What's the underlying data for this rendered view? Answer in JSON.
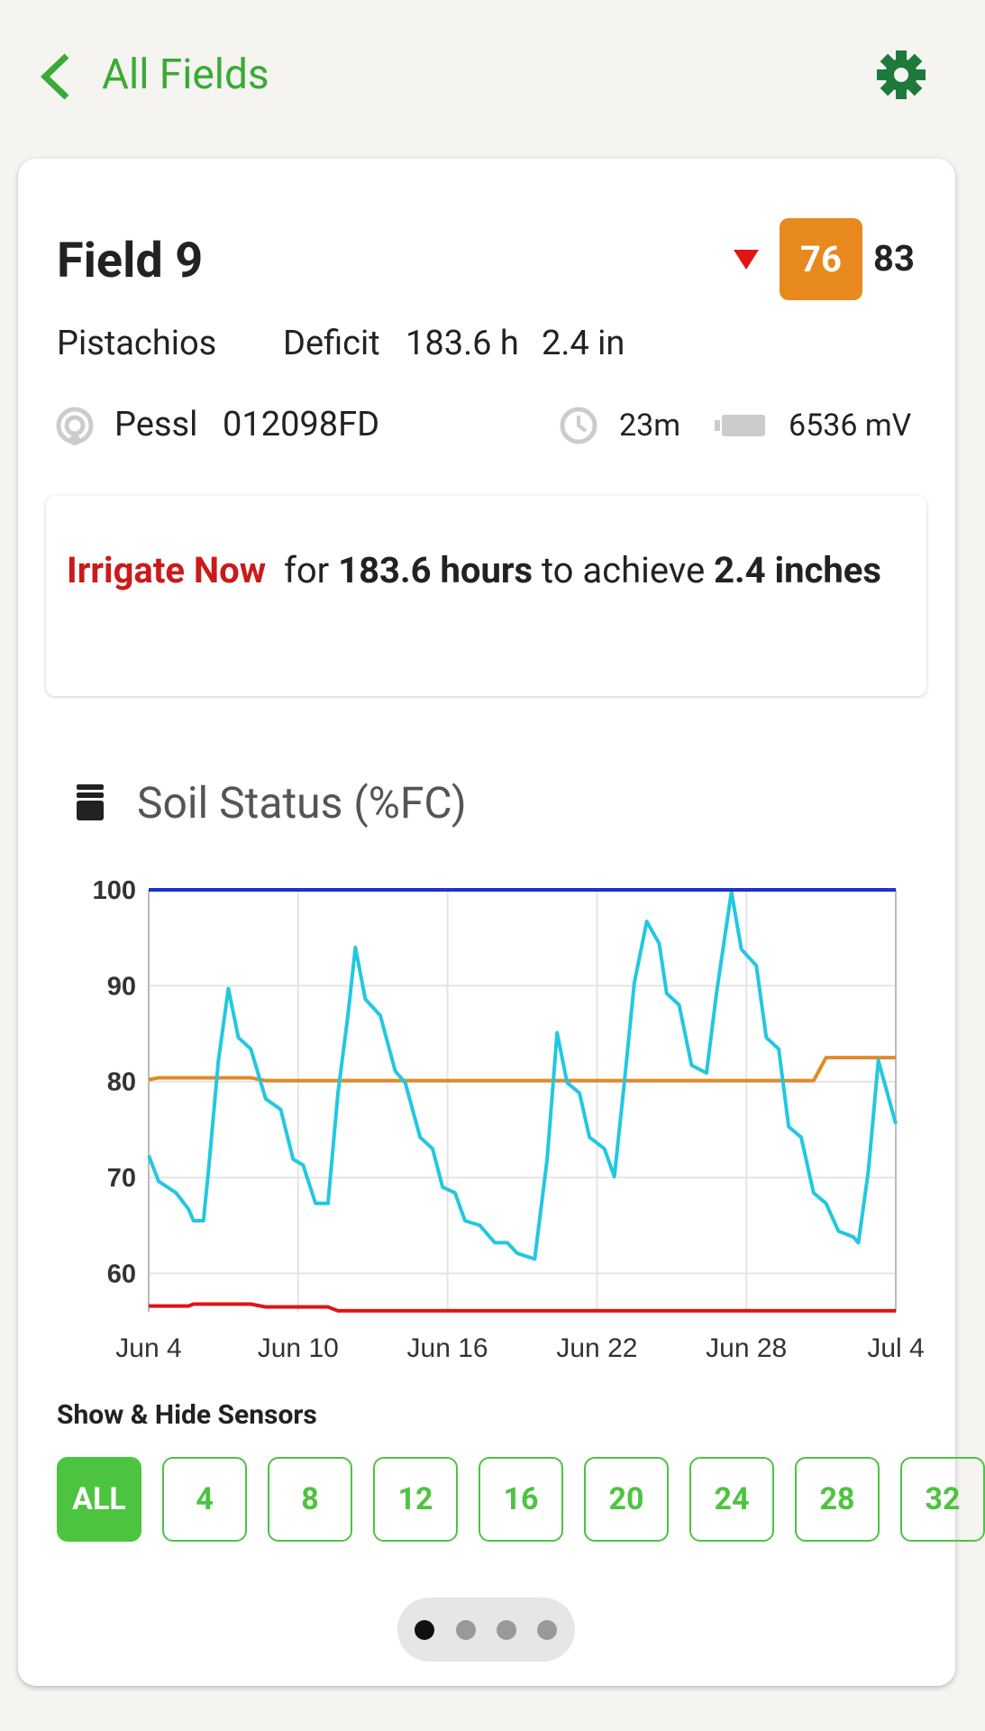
{
  "header": {
    "back": "All Fields"
  },
  "field": {
    "name": "Field 9",
    "score": "76",
    "score_previous": "83",
    "crop": "Pistachios",
    "deficit_label": "Deficit",
    "deficit_hours": "183.6 h",
    "deficit_inches": "2.4 in",
    "sensor_brand": "Pessl",
    "sensor_id": "012098FD",
    "last_update": "23m",
    "battery": "6536 mV"
  },
  "recommendation": {
    "action": "Irrigate Now",
    "text_1": "for",
    "hours": "183.6 hours",
    "text_2": "to achieve",
    "amount": "2.4 inches"
  },
  "chart_data": {
    "type": "line",
    "title": "Soil Status (%FC)",
    "x": [
      0,
      0.4,
      1.1,
      1.6,
      1.8,
      2.2,
      2.4,
      2.8,
      3.2,
      3.6,
      4.1,
      4.7,
      5.3,
      5.8,
      6.2,
      6.7,
      7.2,
      7.6,
      8.0,
      8.3,
      8.7,
      9.3,
      9.9,
      10.3,
      10.9,
      11.4,
      11.8,
      12.3,
      12.7,
      13.3,
      13.9,
      14.4,
      14.8,
      15.5,
      16.0,
      16.4,
      16.8,
      17.3,
      17.7,
      18.3,
      18.7,
      19.1,
      19.5,
      20.0,
      20.5,
      20.8,
      21.3,
      21.8,
      22.4,
      22.8,
      23.4,
      23.8,
      24.4,
      24.8,
      25.3,
      25.7,
      26.2,
      26.7,
      27.2,
      27.7,
      28.3,
      28.5,
      28.9,
      29.3,
      30
    ],
    "xlim": [
      0,
      30
    ],
    "xticks": [
      {
        "value": 0,
        "label": "Jun 4"
      },
      {
        "value": 6,
        "label": "Jun 10"
      },
      {
        "value": 12,
        "label": "Jun 16"
      },
      {
        "value": 18,
        "label": "Jun 22"
      },
      {
        "value": 24,
        "label": "Jun 28"
      },
      {
        "value": 30,
        "label": "Jul 4"
      }
    ],
    "ylim": [
      56,
      100
    ],
    "yticks": [
      60,
      70,
      80,
      90,
      100
    ],
    "grid": true,
    "series": [
      {
        "color": "#e08a2a",
        "values": [
          80.2,
          80.4,
          80.4,
          80.4,
          80.4,
          80.4,
          80.4,
          80.4,
          80.4,
          80.4,
          80.4,
          80.1,
          80.1,
          80.1,
          80.1,
          80.1,
          80.1,
          80.1,
          80.1,
          80.1,
          80.1,
          80.1,
          80.1,
          80.1,
          80.1,
          80.1,
          80.1,
          80.1,
          80.1,
          80.1,
          80.1,
          80.1,
          80.1,
          80.1,
          80.1,
          80.1,
          80.1,
          80.1,
          80.1,
          80.1,
          80.1,
          80.1,
          80.1,
          80.1,
          80.1,
          80.1,
          80.1,
          80.1,
          80.1,
          80.1,
          80.1,
          80.1,
          80.1,
          80.1,
          80.1,
          80.1,
          80.1,
          80.1,
          82.5,
          82.5,
          82.5,
          82.5,
          82.5,
          82.5,
          82.5
        ]
      },
      {
        "color": "#e01414",
        "values": [
          56.6,
          56.6,
          56.6,
          56.6,
          56.8,
          56.8,
          56.8,
          56.8,
          56.8,
          56.8,
          56.8,
          56.5,
          56.5,
          56.5,
          56.5,
          56.5,
          56.5,
          56.1,
          56.1,
          56.1,
          56.1,
          56.1,
          56.1,
          56.1,
          56.1,
          56.1,
          56.1,
          56.1,
          56.1,
          56.1,
          56.1,
          56.1,
          56.1,
          56.1,
          56.1,
          56.1,
          56.1,
          56.1,
          56.1,
          56.1,
          56.1,
          56.1,
          56.1,
          56.1,
          56.1,
          56.1,
          56.1,
          56.1,
          56.1,
          56.1,
          56.1,
          56.1,
          56.1,
          56.1,
          56.1,
          56.1,
          56.1,
          56.1,
          56.1,
          56.1,
          56.1,
          56.1,
          56.1,
          56.1,
          56.1
        ]
      },
      {
        "color": "#22c8e0",
        "values": [
          72.3,
          69.6,
          68.4,
          66.7,
          65.5,
          65.5,
          70.7,
          82.2,
          89.7,
          84.6,
          83.4,
          78.2,
          77.1,
          71.9,
          71.3,
          67.3,
          67.3,
          78.8,
          86.9,
          94.0,
          88.6,
          86.9,
          81.1,
          79.9,
          74.2,
          73.0,
          69.0,
          68.4,
          65.5,
          65.0,
          63.2,
          63.2,
          62.1,
          61.5,
          71.9,
          85.1,
          79.9,
          78.8,
          74.2,
          73.0,
          70.1,
          79.9,
          90.3,
          96.7,
          94.4,
          89.2,
          88.0,
          81.7,
          80.9,
          89.2,
          99.8,
          93.8,
          92.1,
          84.6,
          83.4,
          75.3,
          74.2,
          68.4,
          67.3,
          64.4,
          63.8,
          63.2,
          70.7,
          82.2,
          75.6
        ]
      },
      {
        "color": "#1a33cc",
        "values": [
          100,
          100,
          100,
          100,
          100,
          100,
          100,
          100,
          100,
          100,
          100,
          100,
          100,
          100,
          100,
          100,
          100,
          100,
          100,
          100,
          100,
          100,
          100,
          100,
          100,
          100,
          100,
          100,
          100,
          100,
          100,
          100,
          100,
          100,
          100,
          100,
          100,
          100,
          100,
          100,
          100,
          100,
          100,
          100,
          100,
          100,
          100,
          100,
          100,
          100,
          100,
          100,
          100,
          100,
          100,
          100,
          100,
          100,
          100,
          100,
          100,
          100,
          100,
          100,
          100
        ]
      }
    ]
  },
  "sensors": {
    "title": "Show & Hide Sensors",
    "buttons": [
      "ALL",
      "4",
      "8",
      "12",
      "16",
      "20",
      "24",
      "28",
      "32"
    ]
  }
}
